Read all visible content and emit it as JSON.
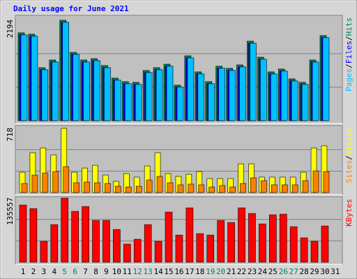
{
  "chart_data": [
    {
      "type": "bar",
      "title": "Daily usage for June 2021",
      "ylim": [
        0,
        2194
      ],
      "yticks": [
        2194
      ],
      "legend_separator": "/",
      "series": [
        {
          "name": "Hits",
          "color": "#00805c",
          "values": [
            1920,
            1890,
            1158,
            1326,
            2194,
            1493,
            1326,
            1356,
            1204,
            930,
            853,
            838,
            1097,
            1158,
            1234,
            777,
            1417,
            1067,
            853,
            1189,
            1143,
            1219,
            1737,
            1387,
            1067,
            1128,
            914,
            838,
            1326,
            1859,
            null
          ]
        },
        {
          "name": "Files",
          "color": "#0000ff",
          "values": [
            1875,
            1845,
            1113,
            1281,
            2149,
            1448,
            1281,
            1311,
            1159,
            885,
            808,
            793,
            1052,
            1113,
            1189,
            732,
            1372,
            1022,
            808,
            1144,
            1098,
            1174,
            1692,
            1342,
            1022,
            1083,
            869,
            793,
            1281,
            1814,
            null
          ]
        },
        {
          "name": "Pages",
          "color": "#00c0ff",
          "values": [
            1875,
            1845,
            1113,
            1281,
            2149,
            1448,
            1281,
            1311,
            1159,
            885,
            808,
            793,
            1052,
            1113,
            1189,
            732,
            1372,
            1022,
            808,
            1144,
            1098,
            1174,
            1692,
            1342,
            1022,
            1083,
            869,
            793,
            1281,
            1814,
            null
          ]
        }
      ]
    },
    {
      "type": "bar",
      "ylim": [
        0,
        718
      ],
      "yticks": [
        718
      ],
      "legend_separator": "/",
      "series": [
        {
          "name": "Visits",
          "color": "#ffff00",
          "values": [
            226,
            445,
            499,
            421,
            718,
            226,
            273,
            304,
            195,
            125,
            211,
            172,
            296,
            445,
            211,
            180,
            203,
            234,
            156,
            156,
            156,
            320,
            320,
            172,
            172,
            172,
            172,
            226,
            499,
            523,
            null
          ]
        },
        {
          "name": "Sites",
          "color": "#ff8000",
          "values": [
            101,
            195,
            218,
            234,
            289,
            109,
            117,
            109,
            101,
            70,
            62,
            70,
            140,
            180,
            109,
            86,
            94,
            86,
            62,
            78,
            62,
            101,
            164,
            133,
            86,
            86,
            86,
            133,
            242,
            234,
            null
          ]
        }
      ]
    },
    {
      "type": "bar",
      "ylim": [
        0,
        135557
      ],
      "yticks": [
        135557
      ],
      "categories": [
        "1",
        "2",
        "3",
        "4",
        "5",
        "6",
        "7",
        "8",
        "9",
        "10",
        "11",
        "12",
        "13",
        "14",
        "15",
        "16",
        "17",
        "18",
        "19",
        "20",
        "21",
        "22",
        "23",
        "24",
        "25",
        "26",
        "27",
        "28",
        "29",
        "30",
        "31"
      ],
      "category_colors": [
        "#000000",
        "#000000",
        "#000000",
        "#000000",
        "#00805c",
        "#00805c",
        "#000000",
        "#000000",
        "#000000",
        "#000000",
        "#000000",
        "#00805c",
        "#00805c",
        "#000000",
        "#000000",
        "#000000",
        "#000000",
        "#000000",
        "#00805c",
        "#00805c",
        "#000000",
        "#000000",
        "#000000",
        "#000000",
        "#000000",
        "#00805c",
        "#00805c",
        "#000000",
        "#000000",
        "#000000",
        "#000000"
      ],
      "series": [
        {
          "name": "KBytes",
          "color": "#ff0000",
          "values": [
            120800,
            113400,
            44200,
            79500,
            135557,
            107500,
            117800,
            88400,
            88400,
            69200,
            38300,
            48600,
            79500,
            44200,
            106000,
            57400,
            114900,
            60400,
            57400,
            88400,
            84000,
            114900,
            103100,
            81000,
            100200,
            101600,
            75100,
            51600,
            44200,
            76600,
            null
          ]
        }
      ]
    }
  ]
}
